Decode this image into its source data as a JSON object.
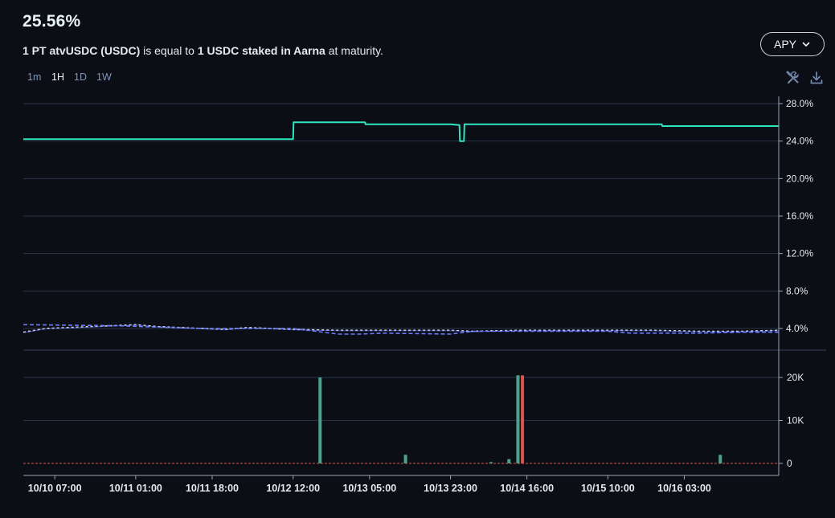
{
  "header": {
    "current_value": "25.56%",
    "description_parts": [
      {
        "text": "1 PT atvUSDC (USDC)",
        "bold": true
      },
      {
        "text": " is equal to ",
        "bold": false
      },
      {
        "text": "1 USDC staked in Aarna",
        "bold": true
      },
      {
        "text": " at maturity.",
        "bold": false
      }
    ]
  },
  "metric_selector": {
    "label": "APY"
  },
  "timeframes": [
    {
      "label": "1m",
      "active": false
    },
    {
      "label": "1H",
      "active": true
    },
    {
      "label": "1D",
      "active": false
    },
    {
      "label": "1W",
      "active": false
    }
  ],
  "toolbar": {
    "tools_icon": "tools-icon",
    "download_icon": "download-icon"
  },
  "colors": {
    "background": "#0b0e15",
    "grid": "#2a3346",
    "implied_apy": "#2ee6c0",
    "underlying_apy": "#6a7bff",
    "volume_buy": "#4aa38f",
    "volume_sell": "#d9534f",
    "zero_line": "#d9534f"
  },
  "chart_data": [
    {
      "type": "line",
      "ylim": [
        0,
        29
      ],
      "y_ticks": [
        "28.0%",
        "24.0%",
        "20.0%",
        "16.0%",
        "12.0%",
        "8.0%",
        "4.0%"
      ],
      "y_tick_values": [
        28,
        24,
        20,
        16,
        12,
        8,
        4
      ],
      "x_ticks": [
        "10/10 07:00",
        "10/11 01:00",
        "10/11 18:00",
        "10/12 12:00",
        "10/13 05:00",
        "10/13 23:00",
        "10/14 16:00",
        "10/15 10:00",
        "10/16 03:00"
      ],
      "x_tick_positions": [
        7,
        25,
        42,
        60,
        77,
        95,
        112,
        130,
        147
      ],
      "x_range": [
        0,
        168
      ],
      "series": [
        {
          "style": "solid",
          "x": [
            0,
            1,
            60,
            60.1,
            66,
            76,
            76.1,
            95,
            97,
            97.1,
            98,
            98.1,
            99,
            99.1,
            120,
            142,
            142.1,
            168
          ],
          "y": [
            24.2,
            24.2,
            24.2,
            26.0,
            26.0,
            26.0,
            25.8,
            25.8,
            25.7,
            24.0,
            24.0,
            25.8,
            25.8,
            25.8,
            25.8,
            25.8,
            25.6,
            25.6
          ]
        },
        {
          "style": "dotted",
          "x": [
            0,
            5,
            15,
            25,
            30,
            40,
            45,
            50,
            60,
            70,
            80,
            95,
            100,
            110,
            120,
            130,
            140,
            150,
            160,
            168
          ],
          "y": [
            3.6,
            4.0,
            4.2,
            4.4,
            4.2,
            4.0,
            3.9,
            4.1,
            3.9,
            3.8,
            3.8,
            3.8,
            3.7,
            3.8,
            3.8,
            3.8,
            3.8,
            3.7,
            3.7,
            3.8
          ]
        },
        {
          "style": "dashed",
          "x": [
            0,
            20,
            40,
            50,
            60,
            70,
            75,
            80,
            95,
            100,
            110,
            120,
            130,
            135,
            140,
            150,
            160,
            168
          ],
          "y": [
            4.4,
            4.3,
            4.0,
            4.0,
            4.0,
            3.4,
            3.4,
            3.5,
            3.4,
            3.7,
            3.7,
            3.7,
            3.7,
            3.5,
            3.5,
            3.5,
            3.6,
            3.6
          ]
        }
      ]
    },
    {
      "type": "bar",
      "ylim": [
        0,
        21500
      ],
      "y_ticks": [
        "20K",
        "10K",
        "0"
      ],
      "y_tick_values": [
        20000,
        10000,
        0
      ],
      "x_range": [
        0,
        168
      ],
      "series": [
        {
          "name": "buy",
          "x": [
            66,
            85,
            104,
            108,
            110
          ],
          "values": [
            20000,
            2000,
            300,
            1000,
            20500
          ]
        },
        {
          "name": "sell",
          "x": [
            111
          ],
          "values": [
            20500
          ]
        },
        {
          "name": "buy2",
          "x": [
            155
          ],
          "values": [
            2000
          ]
        }
      ]
    }
  ]
}
